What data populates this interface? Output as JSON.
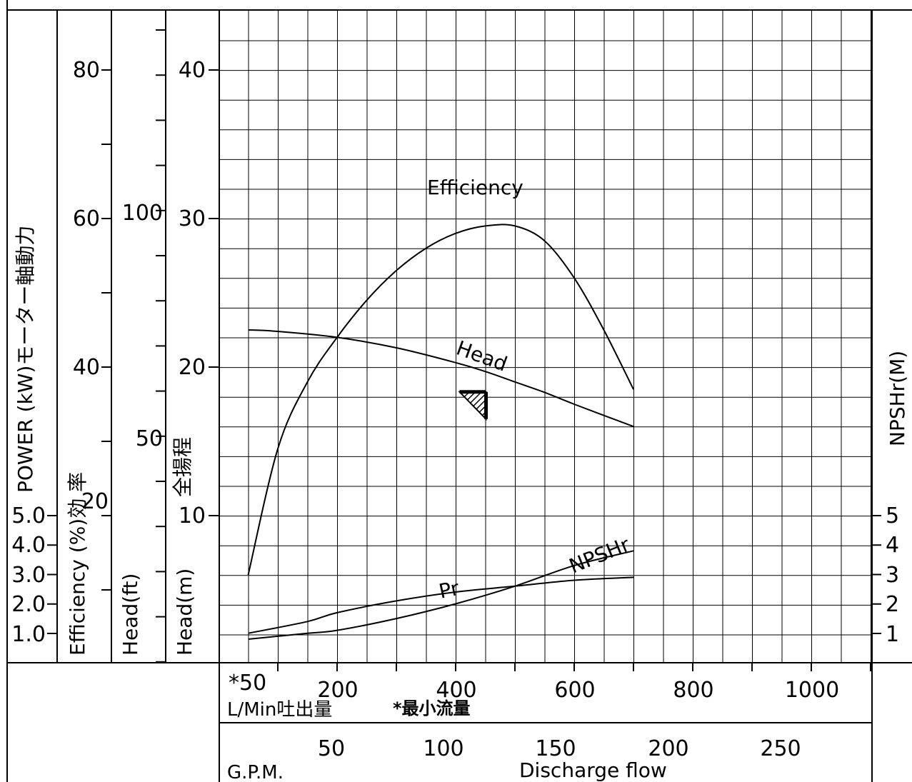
{
  "axes": {
    "power_title": "POWER (kW)モーター軸動力",
    "efficiency_title": "Efficiency (%)効 率",
    "head_ft_title": "Head(ft)",
    "head_m_title": "Head(m)",
    "head_jp_title": "全揚程",
    "npshr_title": "NPSHr(M)",
    "power_ticks_upper": [
      "80",
      "60",
      "40"
    ],
    "power_ticks_lower": [
      "5.0",
      "4.0",
      "3.0",
      "2.0",
      "1.0"
    ],
    "efficiency_ticks": [
      "20"
    ],
    "head_ft_ticks": [
      "100",
      "50"
    ],
    "head_m_ticks": [
      "40",
      "30",
      "20",
      "10"
    ],
    "npshr_ticks": [
      "5",
      "4",
      "3",
      "2",
      "1"
    ]
  },
  "flow": {
    "lmin_ticks": [
      "*50",
      "200",
      "400",
      "600",
      "800",
      "1000"
    ],
    "lmin_title": "L/Min吐出量",
    "min_flow_note": "*最小流量",
    "gpm_ticks": [
      "50",
      "100",
      "150",
      "200",
      "250"
    ],
    "gpm_title": "G.P.M.",
    "discharge_title": "Discharge flow"
  },
  "chart_data": {
    "type": "line",
    "x_unit": "L/Min",
    "x_range": [
      0,
      1100
    ],
    "series": [
      {
        "name": "Head",
        "axis": "Head(m)",
        "x": [
          50,
          100,
          200,
          300,
          400,
          450,
          500,
          550,
          600,
          700
        ],
        "y": [
          22.5,
          22.4,
          22.0,
          21.3,
          20.3,
          19.7,
          19.0,
          18.3,
          17.5,
          16.0
        ]
      },
      {
        "name": "Efficiency",
        "axis": "Efficiency (%)",
        "x": [
          50,
          100,
          150,
          200,
          250,
          300,
          350,
          400,
          450,
          500,
          550,
          600,
          650,
          700
        ],
        "y": [
          12,
          29,
          38,
          44,
          49,
          53,
          56,
          58,
          59,
          59,
          57,
          52,
          45,
          37
        ]
      },
      {
        "name": "Pr",
        "axis": "POWER (kW)",
        "x": [
          50,
          150,
          200,
          300,
          400,
          500,
          600,
          700
        ],
        "y": [
          1.0,
          1.4,
          1.7,
          2.1,
          2.4,
          2.6,
          2.8,
          2.9
        ]
      },
      {
        "name": "NPSHr",
        "axis": "NPSHr(M)",
        "x": [
          50,
          150,
          200,
          300,
          400,
          500,
          600,
          700
        ],
        "y": [
          0.8,
          1.0,
          1.1,
          1.5,
          2.0,
          2.6,
          3.3,
          3.8
        ]
      }
    ],
    "rated_point": {
      "x": 450,
      "y": 19
    }
  }
}
